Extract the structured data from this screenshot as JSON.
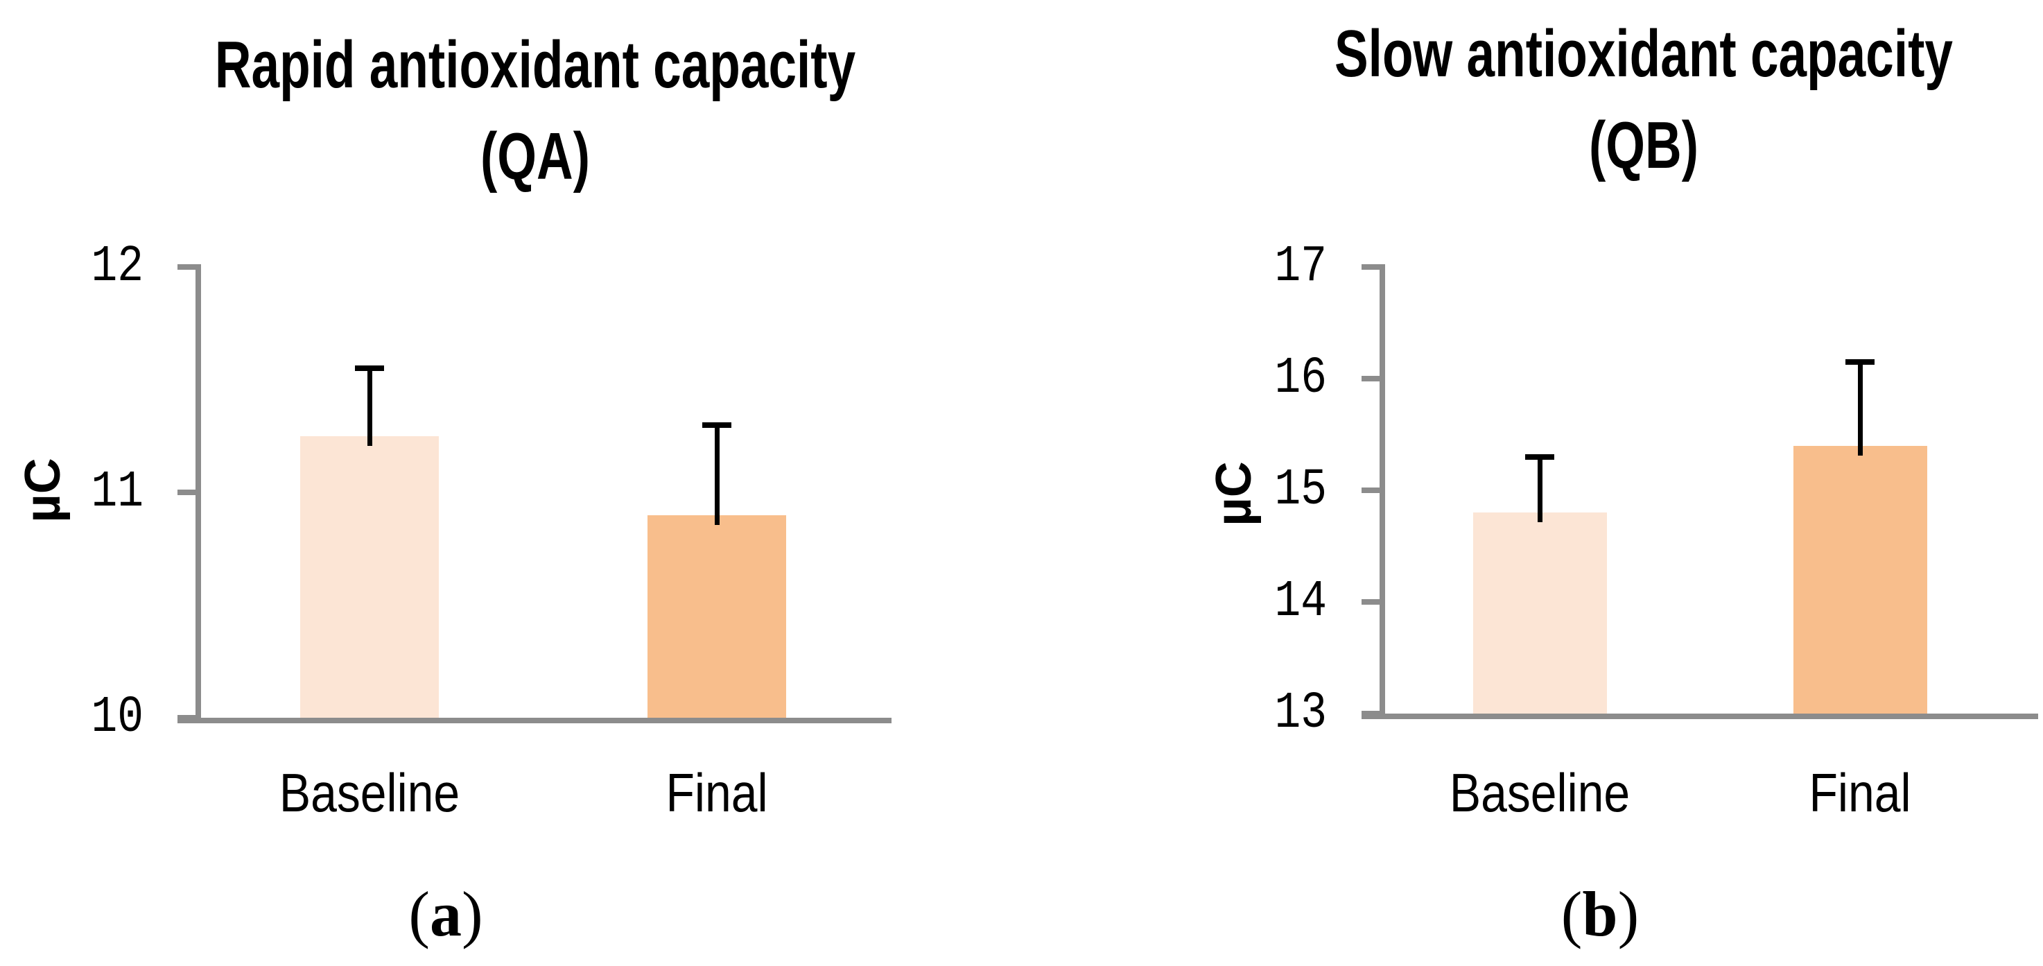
{
  "colors": {
    "baseline_bar": "#FCE5D5",
    "final_bar": "#F8BE8C",
    "axis_gray": "#8C8C8C",
    "error_bar_black": "#000000"
  },
  "captions": [
    {
      "open": "(",
      "letter": "a",
      "close": ")"
    },
    {
      "open": "(",
      "letter": "b",
      "close": ")"
    }
  ],
  "chart_data": [
    {
      "type": "bar",
      "title": "Rapid antioxidant capacity",
      "title_line2": "(QA)",
      "ylabel": "µC",
      "xlabel": "",
      "categories": [
        "Baseline",
        "Final"
      ],
      "values": [
        11.25,
        10.9
      ],
      "errors_plus": [
        0.3,
        0.4
      ],
      "ylim": [
        10,
        12
      ],
      "yticks": [
        10,
        11,
        12
      ],
      "grid": false,
      "legend": "none",
      "bar_colors": [
        "#FCE5D5",
        "#F8BE8C"
      ],
      "caption": "(a)"
    },
    {
      "type": "bar",
      "title": "Slow antioxidant capacity",
      "title_line2": "(QB)",
      "ylabel": "µC",
      "xlabel": "",
      "categories": [
        "Baseline",
        "Final"
      ],
      "values": [
        14.8,
        15.4
      ],
      "errors_plus": [
        0.5,
        0.75
      ],
      "ylim": [
        13,
        17
      ],
      "yticks": [
        13,
        14,
        15,
        16,
        17
      ],
      "grid": false,
      "legend": "none",
      "bar_colors": [
        "#FCE5D5",
        "#F8BE8C"
      ],
      "caption": "(b)"
    }
  ]
}
